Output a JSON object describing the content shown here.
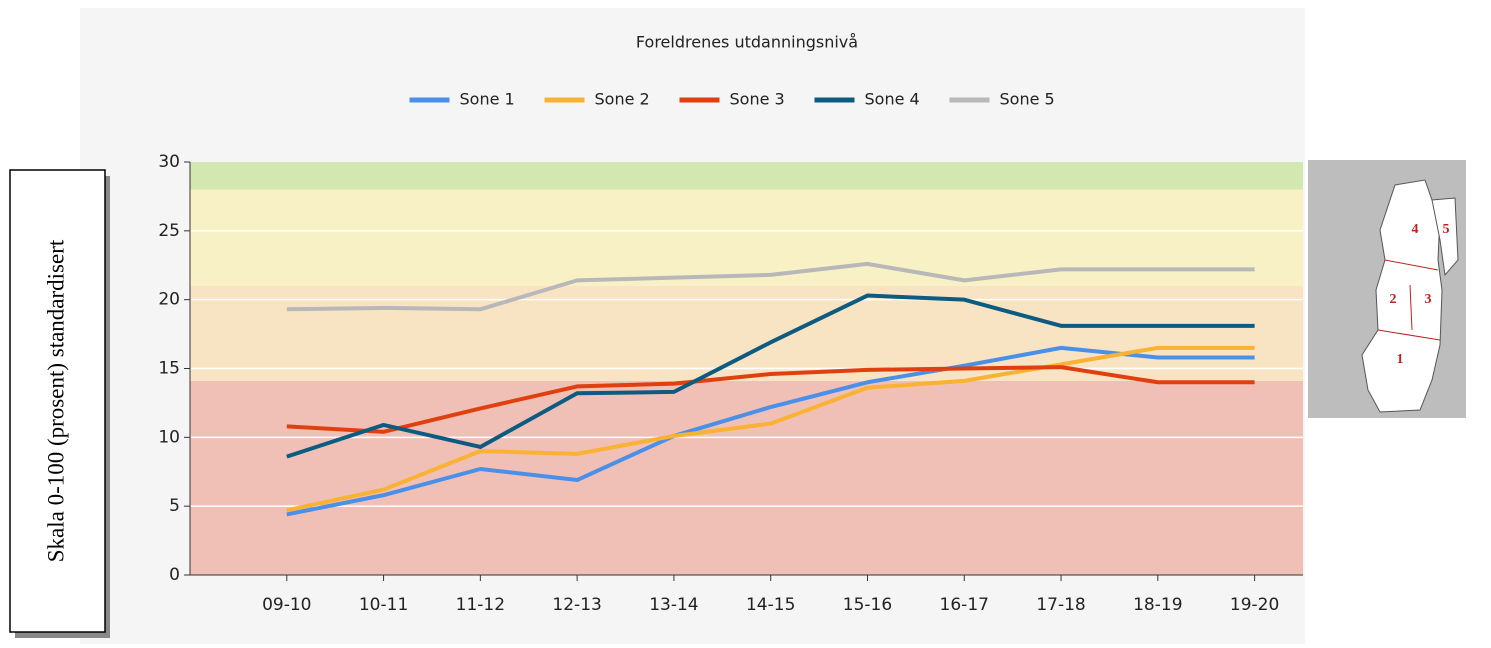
{
  "chart_data": {
    "type": "line",
    "title": "Foreldrenes utdanningsnivå",
    "y_label": "Skala 0-100 (prosent) standardisert",
    "categories": [
      "09-10",
      "10-11",
      "11-12",
      "12-13",
      "13-14",
      "14-15",
      "15-16",
      "16-17",
      "17-18",
      "18-19",
      "19-20"
    ],
    "series": [
      {
        "name": "Sone 1",
        "color": "#4a8fe8",
        "values": [
          4.4,
          5.8,
          7.7,
          6.9,
          10.1,
          12.2,
          14.0,
          15.2,
          16.5,
          15.8,
          15.8
        ]
      },
      {
        "name": "Sone 2",
        "color": "#f9b233",
        "values": [
          4.7,
          6.2,
          9.0,
          8.8,
          10.1,
          11.0,
          13.6,
          14.1,
          15.3,
          16.5,
          16.5
        ]
      },
      {
        "name": "Sone 3",
        "color": "#e0400f",
        "values": [
          10.8,
          10.4,
          12.1,
          13.7,
          13.9,
          14.6,
          14.9,
          15.0,
          15.1,
          14.0,
          14.0
        ]
      },
      {
        "name": "Sone 4",
        "color": "#0d5b80",
        "values": [
          8.6,
          10.9,
          9.3,
          13.2,
          13.3,
          16.9,
          20.3,
          20.0,
          18.1,
          18.1,
          18.1
        ]
      },
      {
        "name": "Sone 5",
        "color": "#b8b8b8",
        "values": [
          19.3,
          19.4,
          19.3,
          21.4,
          21.6,
          21.8,
          22.6,
          21.4,
          22.2,
          22.2,
          22.2
        ]
      }
    ],
    "bands": [
      {
        "from": 0,
        "to": 14.1,
        "color": "#f0c0b6"
      },
      {
        "from": 14.1,
        "to": 21,
        "color": "#f8e4c3"
      },
      {
        "from": 21,
        "to": 28,
        "color": "#f8f1c6"
      },
      {
        "from": 28,
        "to": 30,
        "color": "#d3e7b1"
      }
    ],
    "ylim": [
      0,
      30
    ],
    "yticks": [
      0,
      5,
      10,
      15,
      20,
      25,
      30
    ],
    "grid": true,
    "legend": "top"
  },
  "map": {
    "labels": [
      "1",
      "2",
      "3",
      "4",
      "5"
    ]
  }
}
